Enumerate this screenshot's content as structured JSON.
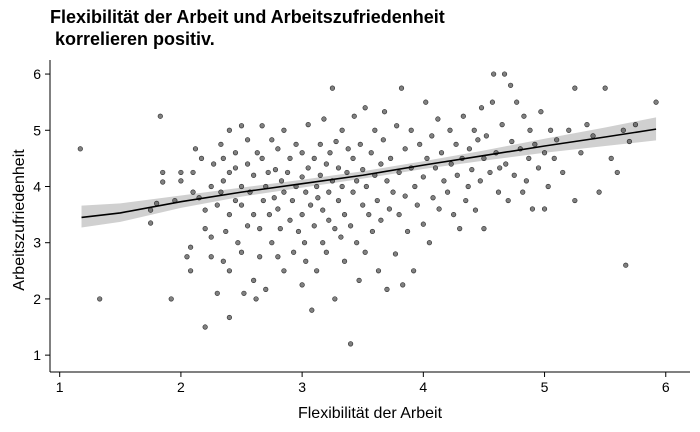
{
  "chart_data": {
    "type": "scatter",
    "title_line1": "Flexibilität der Arbeit und Arbeitszufriedenheit",
    "title_line2": " korrelieren positiv.",
    "xlabel": "Flexibilität der Arbeit",
    "ylabel": "Arbeitszufriedenheit",
    "xlim": [
      0.92,
      6.2
    ],
    "ylim": [
      0.7,
      6.25
    ],
    "xticks": [
      1,
      2,
      3,
      4,
      5,
      6
    ],
    "yticks": [
      1,
      2,
      3,
      4,
      5,
      6
    ],
    "grid": false,
    "point_color": "#555555",
    "trend_color": "#000000",
    "band_color": "#c8c8c8",
    "trend": [
      {
        "x": 1.18,
        "y": 3.45,
        "lo": 3.27,
        "hi": 3.66
      },
      {
        "x": 1.5,
        "y": 3.53,
        "lo": 3.37,
        "hi": 3.7
      },
      {
        "x": 2.0,
        "y": 3.73,
        "lo": 3.62,
        "hi": 3.84
      },
      {
        "x": 2.5,
        "y": 3.9,
        "lo": 3.82,
        "hi": 3.98
      },
      {
        "x": 3.0,
        "y": 4.05,
        "lo": 3.98,
        "hi": 4.12
      },
      {
        "x": 3.5,
        "y": 4.2,
        "lo": 4.14,
        "hi": 4.27
      },
      {
        "x": 4.0,
        "y": 4.38,
        "lo": 4.31,
        "hi": 4.45
      },
      {
        "x": 4.5,
        "y": 4.55,
        "lo": 4.46,
        "hi": 4.64
      },
      {
        "x": 5.0,
        "y": 4.72,
        "lo": 4.6,
        "hi": 4.85
      },
      {
        "x": 5.5,
        "y": 4.88,
        "lo": 4.72,
        "hi": 5.05
      },
      {
        "x": 5.92,
        "y": 5.02,
        "lo": 4.82,
        "hi": 5.23
      }
    ],
    "points": [
      [
        1.17,
        4.67
      ],
      [
        1.33,
        2.0
      ],
      [
        1.75,
        3.35
      ],
      [
        1.75,
        3.58
      ],
      [
        1.8,
        3.7
      ],
      [
        1.83,
        5.25
      ],
      [
        1.85,
        4.25
      ],
      [
        1.85,
        4.08
      ],
      [
        1.92,
        2.0
      ],
      [
        1.95,
        3.75
      ],
      [
        2.0,
        4.1
      ],
      [
        2.0,
        4.25
      ],
      [
        2.05,
        2.75
      ],
      [
        2.08,
        2.5
      ],
      [
        2.08,
        2.92
      ],
      [
        2.1,
        3.9
      ],
      [
        2.1,
        4.25
      ],
      [
        2.12,
        4.67
      ],
      [
        2.15,
        3.8
      ],
      [
        2.17,
        4.5
      ],
      [
        2.2,
        1.5
      ],
      [
        2.2,
        3.25
      ],
      [
        2.2,
        3.58
      ],
      [
        2.25,
        4.0
      ],
      [
        2.25,
        2.75
      ],
      [
        2.25,
        3.1
      ],
      [
        2.27,
        4.4
      ],
      [
        2.3,
        3.67
      ],
      [
        2.3,
        2.1
      ],
      [
        2.33,
        4.75
      ],
      [
        2.33,
        3.9
      ],
      [
        2.35,
        4.1
      ],
      [
        2.35,
        4.5
      ],
      [
        2.35,
        2.67
      ],
      [
        2.37,
        3.2
      ],
      [
        2.4,
        5.0
      ],
      [
        2.4,
        4.25
      ],
      [
        2.4,
        3.5
      ],
      [
        2.4,
        2.5
      ],
      [
        2.4,
        1.67
      ],
      [
        2.45,
        4.6
      ],
      [
        2.45,
        3.75
      ],
      [
        2.45,
        4.33
      ],
      [
        2.47,
        3.0
      ],
      [
        2.5,
        5.08
      ],
      [
        2.5,
        4.0
      ],
      [
        2.5,
        3.67
      ],
      [
        2.5,
        2.83
      ],
      [
        2.52,
        2.1
      ],
      [
        2.55,
        4.4
      ],
      [
        2.55,
        3.3
      ],
      [
        2.55,
        4.83
      ],
      [
        2.57,
        3.9
      ],
      [
        2.6,
        2.33
      ],
      [
        2.6,
        3.5
      ],
      [
        2.6,
        4.2
      ],
      [
        2.62,
        2.0
      ],
      [
        2.63,
        4.6
      ],
      [
        2.65,
        2.75
      ],
      [
        2.65,
        3.25
      ],
      [
        2.67,
        5.08
      ],
      [
        2.67,
        4.5
      ],
      [
        2.68,
        3.75
      ],
      [
        2.7,
        4.0
      ],
      [
        2.7,
        2.17
      ],
      [
        2.72,
        4.25
      ],
      [
        2.73,
        3.5
      ],
      [
        2.75,
        3.0
      ],
      [
        2.75,
        4.83
      ],
      [
        2.77,
        3.8
      ],
      [
        2.78,
        4.3
      ],
      [
        2.8,
        3.6
      ],
      [
        2.8,
        2.75
      ],
      [
        2.8,
        4.67
      ],
      [
        2.82,
        3.25
      ],
      [
        2.83,
        4.1
      ],
      [
        2.85,
        5.0
      ],
      [
        2.85,
        3.9
      ],
      [
        2.85,
        2.5
      ],
      [
        2.88,
        4.25
      ],
      [
        2.9,
        3.4
      ],
      [
        2.9,
        4.5
      ],
      [
        2.92,
        3.75
      ],
      [
        2.93,
        2.83
      ],
      [
        2.95,
        4.0
      ],
      [
        2.95,
        4.75
      ],
      [
        2.97,
        3.2
      ],
      [
        3.0,
        4.17
      ],
      [
        3.0,
        3.5
      ],
      [
        3.0,
        2.25
      ],
      [
        3.0,
        4.6
      ],
      [
        3.02,
        3.0
      ],
      [
        3.03,
        3.9
      ],
      [
        3.03,
        2.67
      ],
      [
        3.05,
        4.33
      ],
      [
        3.05,
        5.1
      ],
      [
        3.07,
        3.67
      ],
      [
        3.08,
        1.8
      ],
      [
        3.1,
        4.5
      ],
      [
        3.1,
        3.3
      ],
      [
        3.12,
        4.0
      ],
      [
        3.12,
        2.5
      ],
      [
        3.13,
        3.8
      ],
      [
        3.15,
        4.75
      ],
      [
        3.15,
        4.2
      ],
      [
        3.17,
        3.58
      ],
      [
        3.17,
        3.0
      ],
      [
        3.18,
        5.2
      ],
      [
        3.2,
        4.4
      ],
      [
        3.2,
        2.83
      ],
      [
        3.22,
        3.9
      ],
      [
        3.22,
        3.4
      ],
      [
        3.23,
        4.6
      ],
      [
        3.25,
        5.75
      ],
      [
        3.25,
        4.1
      ],
      [
        3.27,
        3.25
      ],
      [
        3.27,
        2.0
      ],
      [
        3.28,
        4.8
      ],
      [
        3.3,
        3.75
      ],
      [
        3.3,
        4.33
      ],
      [
        3.32,
        3.1
      ],
      [
        3.33,
        5.0
      ],
      [
        3.33,
        4.0
      ],
      [
        3.35,
        3.5
      ],
      [
        3.35,
        2.67
      ],
      [
        3.37,
        4.25
      ],
      [
        3.38,
        4.67
      ],
      [
        3.4,
        3.3
      ],
      [
        3.4,
        1.2
      ],
      [
        3.42,
        4.5
      ],
      [
        3.42,
        3.9
      ],
      [
        3.43,
        5.25
      ],
      [
        3.45,
        4.1
      ],
      [
        3.45,
        3.0
      ],
      [
        3.47,
        2.33
      ],
      [
        3.48,
        4.75
      ],
      [
        3.5,
        3.67
      ],
      [
        3.5,
        4.3
      ],
      [
        3.52,
        5.4
      ],
      [
        3.52,
        2.83
      ],
      [
        3.53,
        4.0
      ],
      [
        3.55,
        3.5
      ],
      [
        3.57,
        4.6
      ],
      [
        3.58,
        3.2
      ],
      [
        3.6,
        5.0
      ],
      [
        3.6,
        4.2
      ],
      [
        3.62,
        3.75
      ],
      [
        3.63,
        2.5
      ],
      [
        3.65,
        4.4
      ],
      [
        3.65,
        3.4
      ],
      [
        3.67,
        4.83
      ],
      [
        3.68,
        5.33
      ],
      [
        3.7,
        4.1
      ],
      [
        3.7,
        2.17
      ],
      [
        3.72,
        3.6
      ],
      [
        3.73,
        4.5
      ],
      [
        3.75,
        3.9
      ],
      [
        3.77,
        2.8
      ],
      [
        3.78,
        5.08
      ],
      [
        3.8,
        4.25
      ],
      [
        3.8,
        3.5
      ],
      [
        3.82,
        5.75
      ],
      [
        3.83,
        2.25
      ],
      [
        3.85,
        4.67
      ],
      [
        3.85,
        3.83
      ],
      [
        3.87,
        3.2
      ],
      [
        3.9,
        4.33
      ],
      [
        3.9,
        5.0
      ],
      [
        3.92,
        2.5
      ],
      [
        3.93,
        4.0
      ],
      [
        3.95,
        3.67
      ],
      [
        3.97,
        4.75
      ],
      [
        4.0,
        4.17
      ],
      [
        4.0,
        3.33
      ],
      [
        4.02,
        5.5
      ],
      [
        4.03,
        4.5
      ],
      [
        4.05,
        3.0
      ],
      [
        4.07,
        4.9
      ],
      [
        4.08,
        3.8
      ],
      [
        4.1,
        4.33
      ],
      [
        4.12,
        5.2
      ],
      [
        4.13,
        3.6
      ],
      [
        4.15,
        4.6
      ],
      [
        4.17,
        4.1
      ],
      [
        4.2,
        3.9
      ],
      [
        4.22,
        5.0
      ],
      [
        4.23,
        4.4
      ],
      [
        4.25,
        3.5
      ],
      [
        4.27,
        4.75
      ],
      [
        4.28,
        4.2
      ],
      [
        4.3,
        3.25
      ],
      [
        4.32,
        4.5
      ],
      [
        4.33,
        5.25
      ],
      [
        4.35,
        3.75
      ],
      [
        4.37,
        4.0
      ],
      [
        4.38,
        4.67
      ],
      [
        4.4,
        4.3
      ],
      [
        4.42,
        5.0
      ],
      [
        4.43,
        3.58
      ],
      [
        4.45,
        4.83
      ],
      [
        4.47,
        4.1
      ],
      [
        4.48,
        5.4
      ],
      [
        4.5,
        4.5
      ],
      [
        4.5,
        3.25
      ],
      [
        4.52,
        4.9
      ],
      [
        4.55,
        4.25
      ],
      [
        4.57,
        5.5
      ],
      [
        4.58,
        6.0
      ],
      [
        4.6,
        4.6
      ],
      [
        4.62,
        3.9
      ],
      [
        4.63,
        4.33
      ],
      [
        4.65,
        5.1
      ],
      [
        4.67,
        6.0
      ],
      [
        4.68,
        4.4
      ],
      [
        4.7,
        3.75
      ],
      [
        4.72,
        5.8
      ],
      [
        4.73,
        4.8
      ],
      [
        4.75,
        4.2
      ],
      [
        4.77,
        5.5
      ],
      [
        4.8,
        4.67
      ],
      [
        4.82,
        3.9
      ],
      [
        4.83,
        5.25
      ],
      [
        4.85,
        4.1
      ],
      [
        4.87,
        4.5
      ],
      [
        4.88,
        5.0
      ],
      [
        4.9,
        3.6
      ],
      [
        4.92,
        4.75
      ],
      [
        4.95,
        4.33
      ],
      [
        4.97,
        5.33
      ],
      [
        5.0,
        4.6
      ],
      [
        5.0,
        3.6
      ],
      [
        5.03,
        4.0
      ],
      [
        5.05,
        5.0
      ],
      [
        5.08,
        4.5
      ],
      [
        5.1,
        4.83
      ],
      [
        5.15,
        4.25
      ],
      [
        5.2,
        5.0
      ],
      [
        5.25,
        5.75
      ],
      [
        5.25,
        3.75
      ],
      [
        5.3,
        4.6
      ],
      [
        5.35,
        5.1
      ],
      [
        5.4,
        4.9
      ],
      [
        5.45,
        3.9
      ],
      [
        5.5,
        5.75
      ],
      [
        5.55,
        4.5
      ],
      [
        5.6,
        4.25
      ],
      [
        5.65,
        5.0
      ],
      [
        5.67,
        2.6
      ],
      [
        5.7,
        4.8
      ],
      [
        5.75,
        5.1
      ],
      [
        5.92,
        5.5
      ]
    ]
  }
}
